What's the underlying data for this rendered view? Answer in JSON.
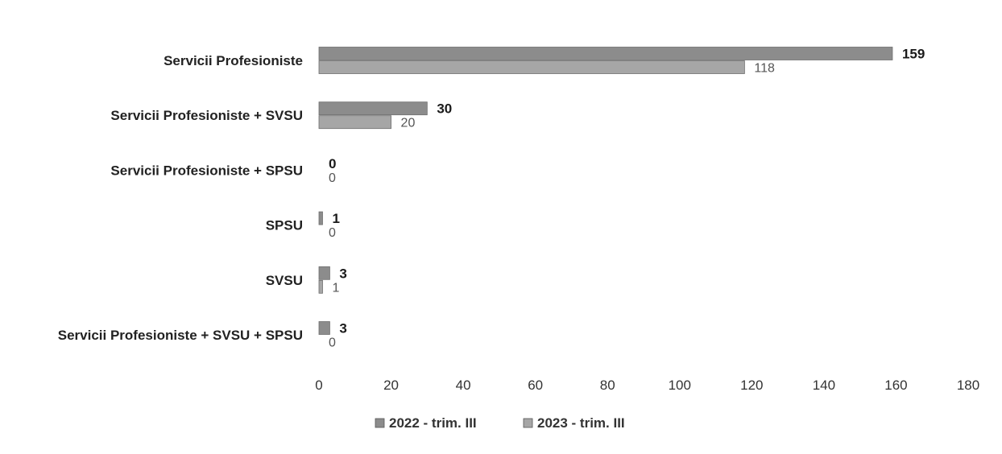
{
  "chart_data": {
    "type": "bar",
    "orientation": "horizontal",
    "categories": [
      "Servicii Profesioniste",
      "Servicii Profesioniste + SVSU",
      "Servicii Profesioniste + SPSU",
      "SPSU",
      "SVSU",
      "Servicii Profesioniste + SVSU + SPSU"
    ],
    "series": [
      {
        "name": "2022 - trim. III",
        "values": [
          159,
          30,
          0,
          1,
          3,
          3
        ],
        "color": "#8c8c8c"
      },
      {
        "name": "2023 - trim. III",
        "values": [
          118,
          20,
          0,
          0,
          1,
          0
        ],
        "color": "#a6a6a6"
      }
    ],
    "xlim": [
      0,
      180
    ],
    "xticks": [
      "0",
      "20",
      "40",
      "60",
      "80",
      "100",
      "120",
      "140",
      "160",
      "180"
    ],
    "grid": false,
    "legend_position": "bottom"
  }
}
